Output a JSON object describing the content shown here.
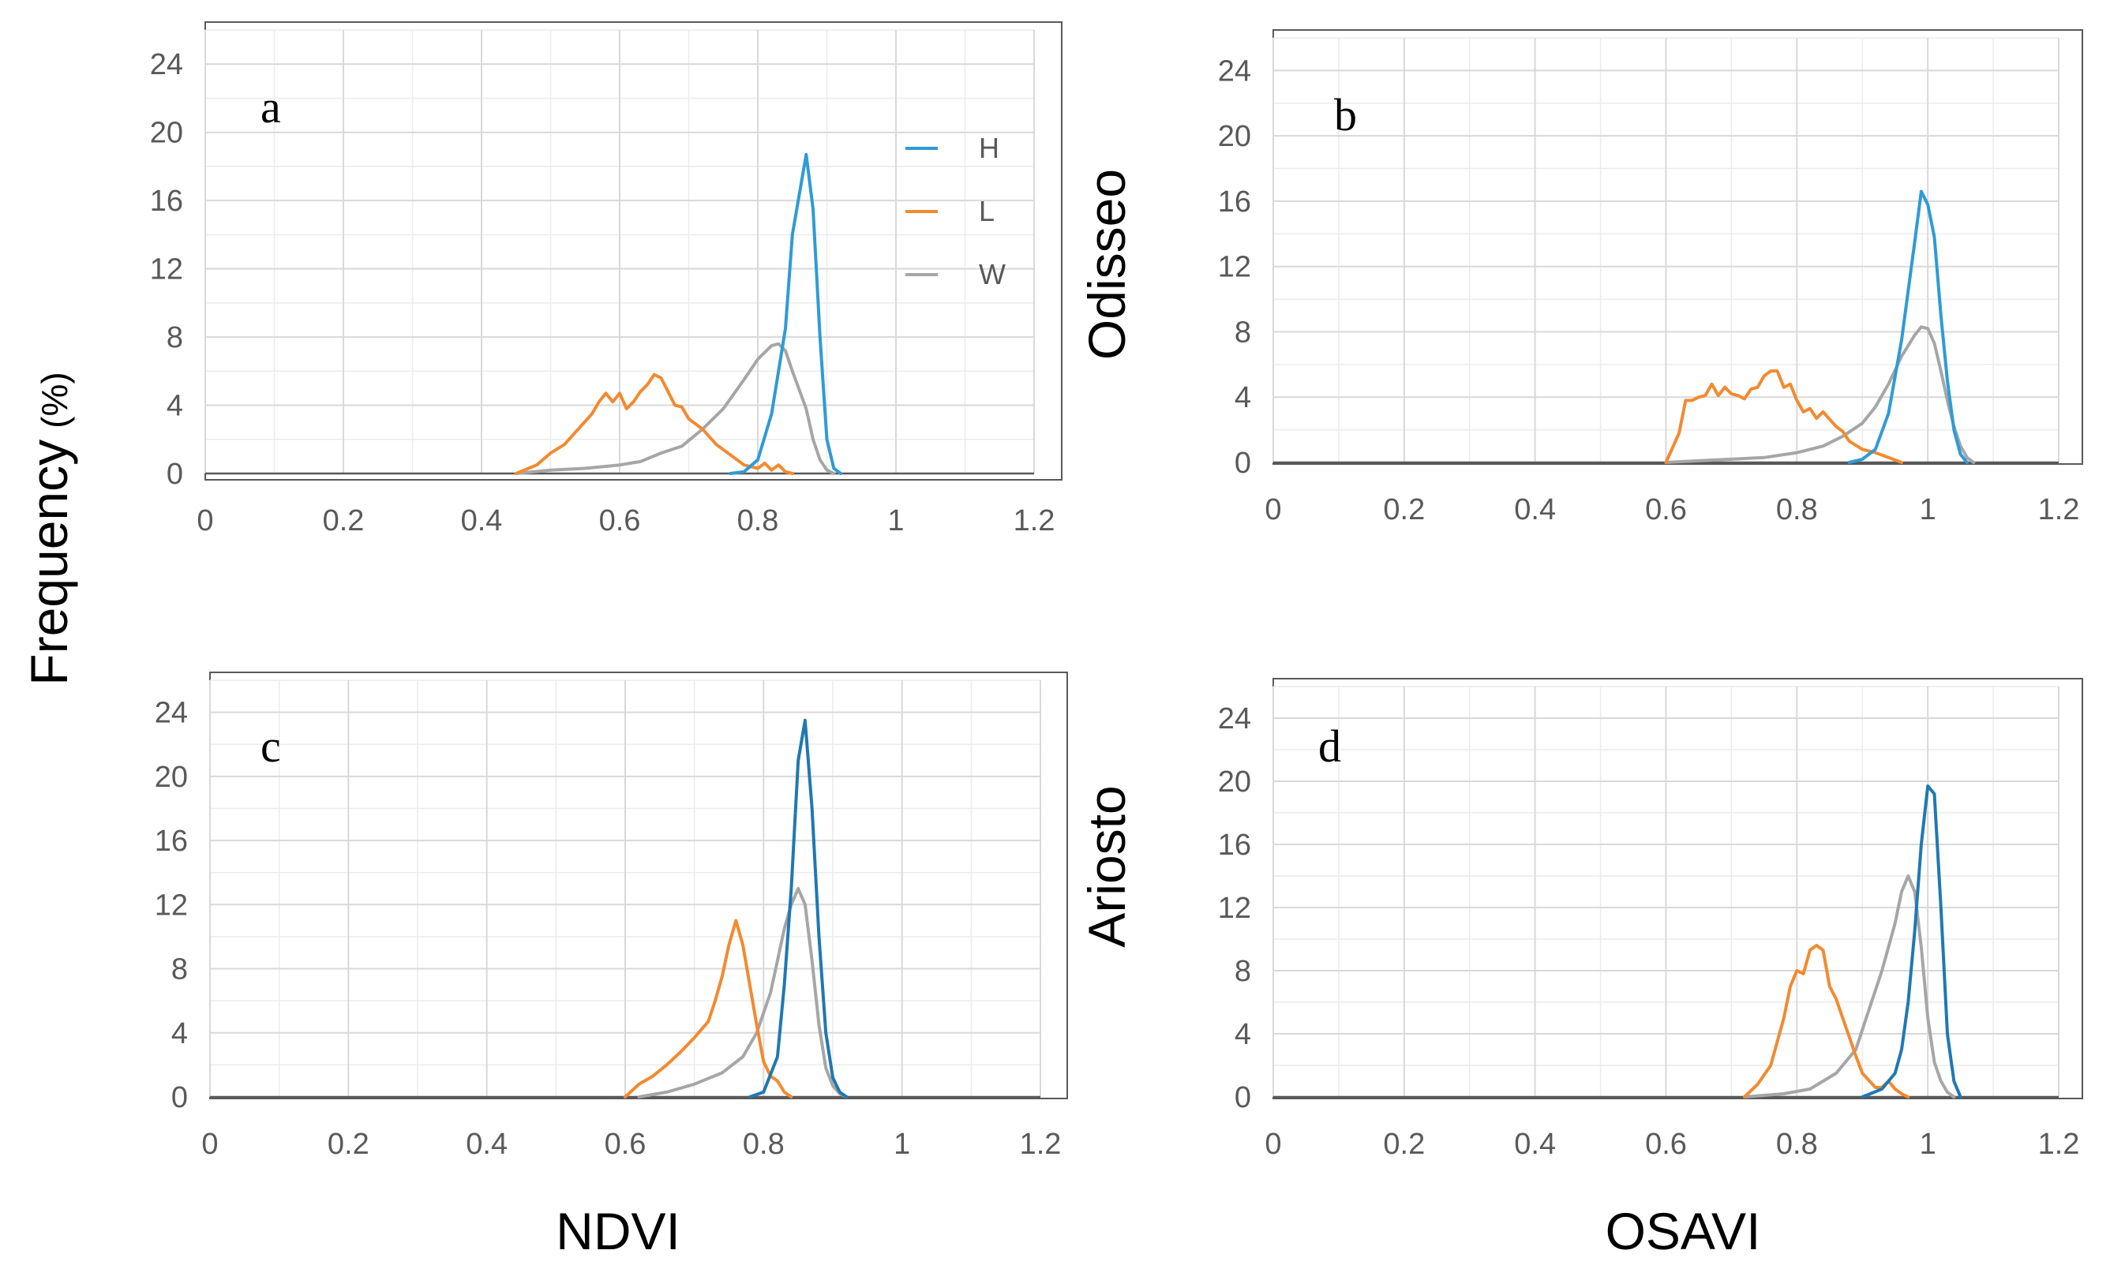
{
  "figure": {
    "y_title_main": "Frequency",
    "y_title_unit": "(%)",
    "row_labels": [
      "Odisseo",
      "Ariosto"
    ],
    "x_titles": [
      "NDVI",
      "OSAVI"
    ]
  },
  "legend": [
    {
      "name": "H",
      "color": "#2E9BD6"
    },
    {
      "name": "L",
      "color": "#F28A30"
    },
    {
      "name": "W",
      "color": "#A6A6A6"
    }
  ],
  "chart_data": [
    {
      "type": "line",
      "panel": "a",
      "xlabel": "",
      "ylabel": "Frequency (%)",
      "xlim": [
        0,
        1.2
      ],
      "ylim": [
        0,
        26
      ],
      "xticks": [
        0,
        0.2,
        0.4,
        0.6,
        0.8,
        1,
        1.2
      ],
      "yticks": [
        0,
        4,
        8,
        12,
        16,
        20,
        24
      ],
      "series": [
        {
          "name": "H",
          "color": "#2E9BD6",
          "points": [
            [
              0.76,
              0
            ],
            [
              0.78,
              0.1
            ],
            [
              0.8,
              0.8
            ],
            [
              0.82,
              3.5
            ],
            [
              0.84,
              8.5
            ],
            [
              0.85,
              14
            ],
            [
              0.87,
              18.7
            ],
            [
              0.88,
              15.5
            ],
            [
              0.89,
              8
            ],
            [
              0.9,
              2
            ],
            [
              0.91,
              0.3
            ],
            [
              0.92,
              0
            ]
          ]
        },
        {
          "name": "L",
          "color": "#F28A30",
          "points": [
            [
              0.45,
              0
            ],
            [
              0.48,
              0.5
            ],
            [
              0.5,
              1.2
            ],
            [
              0.52,
              1.7
            ],
            [
              0.54,
              2.6
            ],
            [
              0.56,
              3.5
            ],
            [
              0.57,
              4.2
            ],
            [
              0.58,
              4.7
            ],
            [
              0.59,
              4.2
            ],
            [
              0.6,
              4.7
            ],
            [
              0.61,
              3.8
            ],
            [
              0.62,
              4.2
            ],
            [
              0.63,
              4.8
            ],
            [
              0.64,
              5.2
            ],
            [
              0.65,
              5.8
            ],
            [
              0.66,
              5.6
            ],
            [
              0.67,
              4.8
            ],
            [
              0.68,
              4
            ],
            [
              0.69,
              3.9
            ],
            [
              0.7,
              3.2
            ],
            [
              0.72,
              2.6
            ],
            [
              0.74,
              1.7
            ],
            [
              0.76,
              1.1
            ],
            [
              0.78,
              0.5
            ],
            [
              0.8,
              0.3
            ],
            [
              0.81,
              0.6
            ],
            [
              0.82,
              0.2
            ],
            [
              0.83,
              0.5
            ],
            [
              0.84,
              0.1
            ],
            [
              0.85,
              0
            ]
          ]
        },
        {
          "name": "W",
          "color": "#A6A6A6",
          "points": [
            [
              0.45,
              0
            ],
            [
              0.5,
              0.2
            ],
            [
              0.55,
              0.3
            ],
            [
              0.6,
              0.5
            ],
            [
              0.63,
              0.7
            ],
            [
              0.66,
              1.2
            ],
            [
              0.69,
              1.6
            ],
            [
              0.72,
              2.6
            ],
            [
              0.75,
              3.8
            ],
            [
              0.78,
              5.5
            ],
            [
              0.8,
              6.7
            ],
            [
              0.82,
              7.5
            ],
            [
              0.83,
              7.6
            ],
            [
              0.84,
              7.2
            ],
            [
              0.85,
              6
            ],
            [
              0.87,
              3.8
            ],
            [
              0.88,
              2
            ],
            [
              0.89,
              0.8
            ],
            [
              0.9,
              0.2
            ],
            [
              0.91,
              0
            ]
          ]
        }
      ]
    },
    {
      "type": "line",
      "panel": "b",
      "xlabel": "",
      "ylabel": "Frequency (%)",
      "xlim": [
        0,
        1.2
      ],
      "ylim": [
        0,
        26
      ],
      "xticks": [
        0,
        0.2,
        0.4,
        0.6,
        0.8,
        1,
        1.2
      ],
      "yticks": [
        0,
        4,
        8,
        12,
        16,
        20,
        24
      ],
      "series": [
        {
          "name": "H",
          "color": "#2E9BD6",
          "points": [
            [
              0.88,
              0
            ],
            [
              0.9,
              0.2
            ],
            [
              0.92,
              0.8
            ],
            [
              0.94,
              3
            ],
            [
              0.96,
              7.5
            ],
            [
              0.97,
              10.5
            ],
            [
              0.98,
              13.5
            ],
            [
              0.99,
              16.6
            ],
            [
              1.0,
              15.8
            ],
            [
              1.01,
              13.8
            ],
            [
              1.02,
              9
            ],
            [
              1.03,
              5
            ],
            [
              1.04,
              2
            ],
            [
              1.05,
              0.5
            ],
            [
              1.06,
              0
            ]
          ]
        },
        {
          "name": "L",
          "color": "#F28A30",
          "points": [
            [
              0.6,
              0
            ],
            [
              0.62,
              1.8
            ],
            [
              0.63,
              3.8
            ],
            [
              0.64,
              3.8
            ],
            [
              0.65,
              4
            ],
            [
              0.66,
              4.1
            ],
            [
              0.67,
              4.8
            ],
            [
              0.68,
              4.1
            ],
            [
              0.69,
              4.6
            ],
            [
              0.7,
              4.2
            ],
            [
              0.71,
              4.1
            ],
            [
              0.72,
              3.9
            ],
            [
              0.73,
              4.5
            ],
            [
              0.74,
              4.6
            ],
            [
              0.75,
              5.3
            ],
            [
              0.76,
              5.6
            ],
            [
              0.77,
              5.6
            ],
            [
              0.78,
              4.6
            ],
            [
              0.79,
              4.8
            ],
            [
              0.8,
              3.8
            ],
            [
              0.81,
              3.1
            ],
            [
              0.82,
              3.3
            ],
            [
              0.83,
              2.7
            ],
            [
              0.84,
              3.1
            ],
            [
              0.86,
              2.2
            ],
            [
              0.87,
              1.9
            ],
            [
              0.88,
              1.3
            ],
            [
              0.9,
              0.8
            ],
            [
              0.92,
              0.6
            ],
            [
              0.94,
              0.3
            ],
            [
              0.96,
              0
            ]
          ]
        },
        {
          "name": "W",
          "color": "#A6A6A6",
          "points": [
            [
              0.6,
              0
            ],
            [
              0.65,
              0.1
            ],
            [
              0.7,
              0.2
            ],
            [
              0.75,
              0.3
            ],
            [
              0.8,
              0.6
            ],
            [
              0.84,
              1
            ],
            [
              0.87,
              1.6
            ],
            [
              0.9,
              2.4
            ],
            [
              0.92,
              3.4
            ],
            [
              0.94,
              4.8
            ],
            [
              0.96,
              6.5
            ],
            [
              0.98,
              7.8
            ],
            [
              0.99,
              8.3
            ],
            [
              1.0,
              8.2
            ],
            [
              1.01,
              7.3
            ],
            [
              1.02,
              5.6
            ],
            [
              1.03,
              3.8
            ],
            [
              1.04,
              2.2
            ],
            [
              1.05,
              1
            ],
            [
              1.06,
              0.3
            ],
            [
              1.07,
              0
            ]
          ]
        }
      ]
    },
    {
      "type": "line",
      "panel": "c",
      "xlabel": "NDVI",
      "ylabel": "Frequency (%)",
      "xlim": [
        0,
        1.2
      ],
      "ylim": [
        0,
        26
      ],
      "xticks": [
        0,
        0.2,
        0.4,
        0.6,
        0.8,
        1,
        1.2
      ],
      "yticks": [
        0,
        4,
        8,
        12,
        16,
        20,
        24
      ],
      "series": [
        {
          "name": "H",
          "color": "#1F78B4",
          "points": [
            [
              0.78,
              0
            ],
            [
              0.8,
              0.3
            ],
            [
              0.82,
              2.5
            ],
            [
              0.83,
              7
            ],
            [
              0.84,
              13
            ],
            [
              0.85,
              21
            ],
            [
              0.86,
              23.5
            ],
            [
              0.87,
              18
            ],
            [
              0.88,
              10
            ],
            [
              0.89,
              4
            ],
            [
              0.9,
              1.2
            ],
            [
              0.91,
              0.3
            ],
            [
              0.92,
              0
            ]
          ]
        },
        {
          "name": "L",
          "color": "#F28A30",
          "points": [
            [
              0.6,
              0
            ],
            [
              0.62,
              0.8
            ],
            [
              0.64,
              1.3
            ],
            [
              0.66,
              2
            ],
            [
              0.68,
              2.8
            ],
            [
              0.7,
              3.7
            ],
            [
              0.71,
              4.2
            ],
            [
              0.72,
              4.7
            ],
            [
              0.73,
              6
            ],
            [
              0.74,
              7.5
            ],
            [
              0.75,
              9.5
            ],
            [
              0.76,
              11
            ],
            [
              0.77,
              9.5
            ],
            [
              0.78,
              7
            ],
            [
              0.79,
              4.5
            ],
            [
              0.8,
              2.2
            ],
            [
              0.81,
              1.3
            ],
            [
              0.82,
              1
            ],
            [
              0.83,
              0.3
            ],
            [
              0.84,
              0
            ]
          ]
        },
        {
          "name": "W",
          "color": "#A6A6A6",
          "points": [
            [
              0.62,
              0
            ],
            [
              0.66,
              0.3
            ],
            [
              0.7,
              0.8
            ],
            [
              0.74,
              1.5
            ],
            [
              0.77,
              2.5
            ],
            [
              0.79,
              4
            ],
            [
              0.81,
              6.5
            ],
            [
              0.82,
              8.5
            ],
            [
              0.83,
              10.5
            ],
            [
              0.84,
              12
            ],
            [
              0.85,
              13
            ],
            [
              0.86,
              12
            ],
            [
              0.87,
              8.5
            ],
            [
              0.88,
              4.5
            ],
            [
              0.89,
              1.8
            ],
            [
              0.9,
              0.7
            ],
            [
              0.91,
              0.2
            ],
            [
              0.92,
              0
            ]
          ]
        }
      ]
    },
    {
      "type": "line",
      "panel": "d",
      "xlabel": "OSAVI",
      "ylabel": "Frequency (%)",
      "xlim": [
        0,
        1.2
      ],
      "ylim": [
        0,
        26
      ],
      "xticks": [
        0,
        0.2,
        0.4,
        0.6,
        0.8,
        1,
        1.2
      ],
      "yticks": [
        0,
        4,
        8,
        12,
        16,
        20,
        24
      ],
      "series": [
        {
          "name": "H",
          "color": "#1F78B4",
          "points": [
            [
              0.9,
              0
            ],
            [
              0.93,
              0.5
            ],
            [
              0.95,
              1.5
            ],
            [
              0.96,
              3
            ],
            [
              0.97,
              6
            ],
            [
              0.98,
              10.5
            ],
            [
              0.99,
              16
            ],
            [
              1.0,
              19.7
            ],
            [
              1.01,
              19.2
            ],
            [
              1.02,
              12
            ],
            [
              1.03,
              4
            ],
            [
              1.04,
              1
            ],
            [
              1.05,
              0
            ]
          ]
        },
        {
          "name": "L",
          "color": "#F28A30",
          "points": [
            [
              0.72,
              0
            ],
            [
              0.74,
              0.8
            ],
            [
              0.76,
              2
            ],
            [
              0.78,
              5
            ],
            [
              0.79,
              7
            ],
            [
              0.8,
              8
            ],
            [
              0.81,
              7.8
            ],
            [
              0.82,
              9.3
            ],
            [
              0.83,
              9.6
            ],
            [
              0.84,
              9.3
            ],
            [
              0.85,
              7
            ],
            [
              0.86,
              6.2
            ],
            [
              0.87,
              5
            ],
            [
              0.88,
              3.8
            ],
            [
              0.89,
              2.6
            ],
            [
              0.9,
              1.5
            ],
            [
              0.92,
              0.6
            ],
            [
              0.93,
              0.6
            ],
            [
              0.94,
              1
            ],
            [
              0.95,
              0.5
            ],
            [
              0.96,
              0.2
            ],
            [
              0.97,
              0
            ]
          ]
        },
        {
          "name": "W",
          "color": "#A6A6A6",
          "points": [
            [
              0.72,
              0
            ],
            [
              0.78,
              0.2
            ],
            [
              0.82,
              0.5
            ],
            [
              0.86,
              1.5
            ],
            [
              0.89,
              3
            ],
            [
              0.91,
              5.5
            ],
            [
              0.93,
              8
            ],
            [
              0.95,
              11
            ],
            [
              0.96,
              13
            ],
            [
              0.97,
              14
            ],
            [
              0.98,
              13
            ],
            [
              0.99,
              9.5
            ],
            [
              1.0,
              5
            ],
            [
              1.01,
              2.2
            ],
            [
              1.02,
              1
            ],
            [
              1.03,
              0.3
            ],
            [
              1.04,
              0
            ]
          ]
        }
      ]
    }
  ]
}
